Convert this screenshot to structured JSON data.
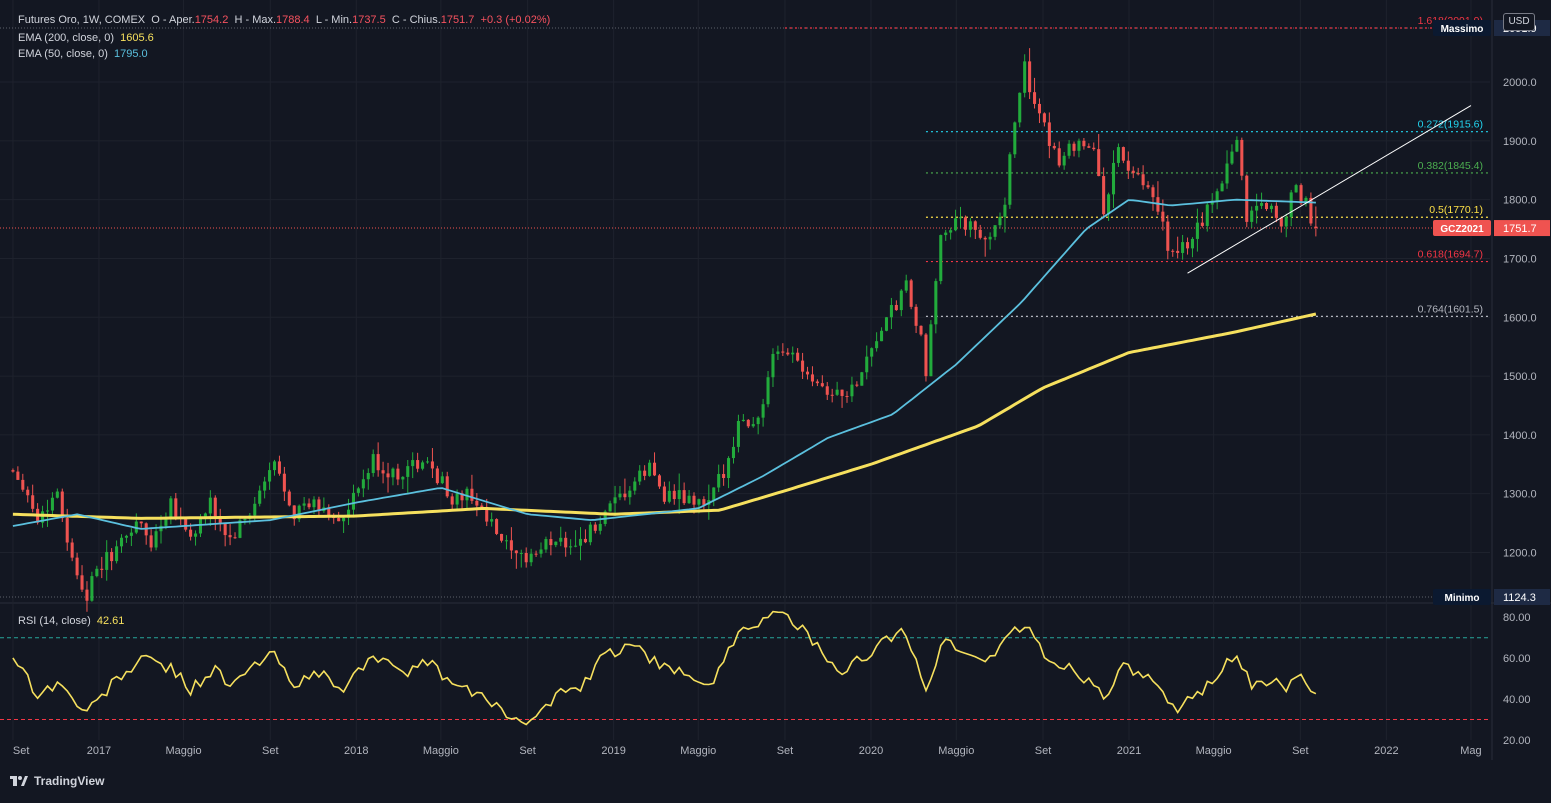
{
  "header": {
    "title": "Futures Oro, 1W, COMEX",
    "o_label": "O - Aper.",
    "o_value": "1754.2",
    "h_label": "H - Max.",
    "h_value": "1788.4",
    "l_label": "L - Min.",
    "l_value": "1737.5",
    "c_label": "C - Chius.",
    "c_value": "1751.7",
    "change": "+0.3 (+0.02%)",
    "ema200_label": "EMA (200, close, 0)",
    "ema200_value": "1605.6",
    "ema50_label": "EMA (50, close, 0)",
    "ema50_value": "1795.0",
    "rsi_label": "RSI (14, close)",
    "rsi_value": "42.61"
  },
  "currency_button": "USD",
  "brand": "TradingView",
  "colors": {
    "background": "#131722",
    "up": "#26a69a",
    "up_candle": "#22ab3c",
    "down_candle": "#ef5350",
    "ema200": "#f6e05e",
    "ema50": "#5bc0de",
    "rsi": "#f6e05e",
    "grid": "#1e222d"
  },
  "chart_data": [
    {
      "type": "candlestick",
      "title": "Futures Oro, 1W, COMEX",
      "ylim": [
        1124.3,
        2091.9
      ],
      "y_ticks": [
        "1200.0",
        "1300.0",
        "1400.0",
        "1500.0",
        "1600.0",
        "1700.0",
        "1800.0",
        "1900.0",
        "2000.0"
      ],
      "x_ticks": [
        "Set",
        "2017",
        "Maggio",
        "Set",
        "2018",
        "Maggio",
        "Set",
        "2019",
        "Maggio",
        "Set",
        "2020",
        "Maggio",
        "Set",
        "2021",
        "Maggio",
        "Set",
        "2022",
        "Mag"
      ],
      "x_tick_dates": [
        "2016-09",
        "2017-01",
        "2017-05",
        "2017-09",
        "2018-01",
        "2018-05",
        "2018-09",
        "2019-01",
        "2019-05",
        "2019-09",
        "2020-01",
        "2020-05",
        "2020-09",
        "2021-01",
        "2021-05",
        "2021-09",
        "2022-01",
        "2022-05"
      ],
      "close_anchors": [
        [
          "2016-09-01",
          1340
        ],
        [
          "2016-09-15",
          1320
        ],
        [
          "2016-10-06",
          1255
        ],
        [
          "2016-11-03",
          1305
        ],
        [
          "2016-11-24",
          1185
        ],
        [
          "2016-12-15",
          1130
        ],
        [
          "2017-01-05",
          1180
        ],
        [
          "2017-02-02",
          1215
        ],
        [
          "2017-02-23",
          1255
        ],
        [
          "2017-03-16",
          1215
        ],
        [
          "2017-04-13",
          1290
        ],
        [
          "2017-05-11",
          1225
        ],
        [
          "2017-06-08",
          1280
        ],
        [
          "2017-07-06",
          1220
        ],
        [
          "2017-08-03",
          1265
        ],
        [
          "2017-09-07",
          1350
        ],
        [
          "2017-10-05",
          1270
        ],
        [
          "2017-11-02",
          1280
        ],
        [
          "2017-12-14",
          1255
        ],
        [
          "2018-01-25",
          1355
        ],
        [
          "2018-02-22",
          1330
        ],
        [
          "2018-03-22",
          1350
        ],
        [
          "2018-04-19",
          1345
        ],
        [
          "2018-05-17",
          1290
        ],
        [
          "2018-06-14",
          1300
        ],
        [
          "2018-07-05",
          1255
        ],
        [
          "2018-08-16",
          1185
        ],
        [
          "2018-09-13",
          1200
        ],
        [
          "2018-10-11",
          1225
        ],
        [
          "2018-11-08",
          1215
        ],
        [
          "2018-12-13",
          1250
        ],
        [
          "2019-01-10",
          1290
        ],
        [
          "2019-02-21",
          1345
        ],
        [
          "2019-03-14",
          1300
        ],
        [
          "2019-04-25",
          1285
        ],
        [
          "2019-05-16",
          1280
        ],
        [
          "2019-06-06",
          1340
        ],
        [
          "2019-06-27",
          1420
        ],
        [
          "2019-07-25",
          1425
        ],
        [
          "2019-08-15",
          1525
        ],
        [
          "2019-09-05",
          1545
        ],
        [
          "2019-10-03",
          1510
        ],
        [
          "2019-11-07",
          1470
        ],
        [
          "2019-12-05",
          1475
        ],
        [
          "2020-01-02",
          1550
        ],
        [
          "2020-02-20",
          1650
        ],
        [
          "2020-03-12",
          1560
        ],
        [
          "2020-03-19",
          1490
        ],
        [
          "2020-04-09",
          1750
        ],
        [
          "2020-05-14",
          1760
        ],
        [
          "2020-06-11",
          1725
        ],
        [
          "2020-07-09",
          1800
        ],
        [
          "2020-07-30",
          1990
        ],
        [
          "2020-08-06",
          2040
        ],
        [
          "2020-08-20",
          1950
        ],
        [
          "2020-09-24",
          1870
        ],
        [
          "2020-10-22",
          1905
        ],
        [
          "2020-11-12",
          1880
        ],
        [
          "2020-11-26",
          1785
        ],
        [
          "2020-12-17",
          1885
        ],
        [
          "2021-01-07",
          1840
        ],
        [
          "2021-02-04",
          1800
        ],
        [
          "2021-03-04",
          1700
        ],
        [
          "2021-03-25",
          1725
        ],
        [
          "2021-04-22",
          1780
        ],
        [
          "2021-05-13",
          1840
        ],
        [
          "2021-06-03",
          1905
        ],
        [
          "2021-06-17",
          1770
        ],
        [
          "2021-07-08",
          1800
        ],
        [
          "2021-08-05",
          1765
        ],
        [
          "2021-08-26",
          1815
        ],
        [
          "2021-09-09",
          1790
        ],
        [
          "2021-09-23",
          1751.7
        ]
      ],
      "last": {
        "date": "2021-09-23",
        "open": 1754.2,
        "high": 1788.4,
        "low": 1737.5,
        "close": 1751.7
      },
      "series": [
        {
          "name": "EMA (200, close, 0)",
          "color": "#f6e05e",
          "anchors": [
            [
              "2016-09-01",
              1265
            ],
            [
              "2017-03-01",
              1258
            ],
            [
              "2018-01-01",
              1262
            ],
            [
              "2018-07-01",
              1275
            ],
            [
              "2019-01-01",
              1265
            ],
            [
              "2019-06-01",
              1272
            ],
            [
              "2019-09-01",
              1305
            ],
            [
              "2020-01-01",
              1350
            ],
            [
              "2020-06-01",
              1415
            ],
            [
              "2020-09-01",
              1480
            ],
            [
              "2021-01-01",
              1540
            ],
            [
              "2021-06-01",
              1575
            ],
            [
              "2021-09-23",
              1605.6
            ]
          ]
        },
        {
          "name": "EMA (50, close, 0)",
          "color": "#5bc0de",
          "anchors": [
            [
              "2016-09-01",
              1245
            ],
            [
              "2016-12-01",
              1265
            ],
            [
              "2017-03-01",
              1240
            ],
            [
              "2017-09-01",
              1255
            ],
            [
              "2018-01-01",
              1285
            ],
            [
              "2018-05-01",
              1310
            ],
            [
              "2018-09-01",
              1265
            ],
            [
              "2018-12-01",
              1255
            ],
            [
              "2019-05-01",
              1275
            ],
            [
              "2019-08-01",
              1330
            ],
            [
              "2019-11-01",
              1395
            ],
            [
              "2020-02-01",
              1435
            ],
            [
              "2020-05-01",
              1520
            ],
            [
              "2020-08-01",
              1625
            ],
            [
              "2020-11-01",
              1750
            ],
            [
              "2021-01-01",
              1800
            ],
            [
              "2021-03-01",
              1790
            ],
            [
              "2021-06-01",
              1800
            ],
            [
              "2021-09-23",
              1795
            ]
          ]
        }
      ],
      "fibonacci": [
        {
          "label": "1.618(2091.9)",
          "value": 2091.9,
          "color": "#f23645"
        },
        {
          "label": "0.272(1915.6)",
          "value": 1915.6,
          "color": "#22d3ee"
        },
        {
          "label": "0.382(1845.4)",
          "value": 1845.4,
          "color": "#4caf50"
        },
        {
          "label": "0.5(1770.1)",
          "value": 1770.1,
          "color": "#fde047"
        },
        {
          "label": "0.618(1694.7)",
          "value": 1694.7,
          "color": "#f23645"
        },
        {
          "label": "0.764(1601.5)",
          "value": 1601.5,
          "color": "#b2b5be"
        }
      ],
      "fib_start_date": "2020-03-19",
      "trendline": {
        "from": [
          "2021-03-25",
          1675
        ],
        "to": [
          "2022-05-01",
          1960
        ],
        "color": "#ffffff"
      },
      "price_labels": [
        {
          "text": "Massimo",
          "value": "2091.9"
        },
        {
          "text": "GCZ2021",
          "value": "1751.7"
        },
        {
          "text": "Minimo",
          "value": "1124.3"
        }
      ]
    },
    {
      "type": "line",
      "title": "RSI (14, close)",
      "ylim": [
        20,
        85
      ],
      "y_ticks": [
        "20.00",
        "40.00",
        "60.00",
        "80.00"
      ],
      "levels": [
        30,
        70
      ],
      "series": [
        {
          "name": "RSI (14, close)",
          "color": "#f6e05e",
          "anchors": [
            [
              "2016-09-01",
              62
            ],
            [
              "2016-10-06",
              42
            ],
            [
              "2016-11-03",
              48
            ],
            [
              "2016-12-15",
              33
            ],
            [
              "2017-01-26",
              50
            ],
            [
              "2017-03-09",
              60
            ],
            [
              "2017-04-13",
              55
            ],
            [
              "2017-05-11",
              45
            ],
            [
              "2017-06-15",
              55
            ],
            [
              "2017-07-06",
              45
            ],
            [
              "2017-08-03",
              55
            ],
            [
              "2017-09-07",
              62
            ],
            [
              "2017-10-05",
              48
            ],
            [
              "2017-11-16",
              52
            ],
            [
              "2017-12-14",
              44
            ],
            [
              "2018-01-25",
              63
            ],
            [
              "2018-03-01",
              52
            ],
            [
              "2018-04-12",
              58
            ],
            [
              "2018-05-24",
              46
            ],
            [
              "2018-06-21",
              42
            ],
            [
              "2018-07-19",
              38
            ],
            [
              "2018-08-16",
              28
            ],
            [
              "2018-09-20",
              34
            ],
            [
              "2018-10-18",
              44
            ],
            [
              "2018-11-15",
              44
            ],
            [
              "2018-12-20",
              62
            ],
            [
              "2019-02-07",
              66
            ],
            [
              "2019-03-07",
              55
            ],
            [
              "2019-04-18",
              52
            ],
            [
              "2019-05-23",
              48
            ],
            [
              "2019-06-27",
              74
            ],
            [
              "2019-08-08",
              80
            ],
            [
              "2019-09-05",
              82
            ],
            [
              "2019-10-10",
              68
            ],
            [
              "2019-11-14",
              52
            ],
            [
              "2019-12-12",
              58
            ],
            [
              "2020-01-09",
              66
            ],
            [
              "2020-02-20",
              73
            ],
            [
              "2020-03-19",
              45
            ],
            [
              "2020-04-16",
              70
            ],
            [
              "2020-05-14",
              62
            ],
            [
              "2020-06-11",
              58
            ],
            [
              "2020-07-16",
              72
            ],
            [
              "2020-08-06",
              76
            ],
            [
              "2020-09-10",
              58
            ],
            [
              "2020-10-15",
              55
            ],
            [
              "2020-11-26",
              42
            ],
            [
              "2020-12-24",
              55
            ],
            [
              "2021-01-28",
              50
            ],
            [
              "2021-03-04",
              35
            ],
            [
              "2021-04-08",
              42
            ],
            [
              "2021-05-20",
              58
            ],
            [
              "2021-06-03",
              62
            ],
            [
              "2021-06-24",
              45
            ],
            [
              "2021-07-22",
              50
            ],
            [
              "2021-08-12",
              44
            ],
            [
              "2021-09-02",
              54
            ],
            [
              "2021-09-23",
              42.61
            ]
          ]
        }
      ]
    }
  ]
}
